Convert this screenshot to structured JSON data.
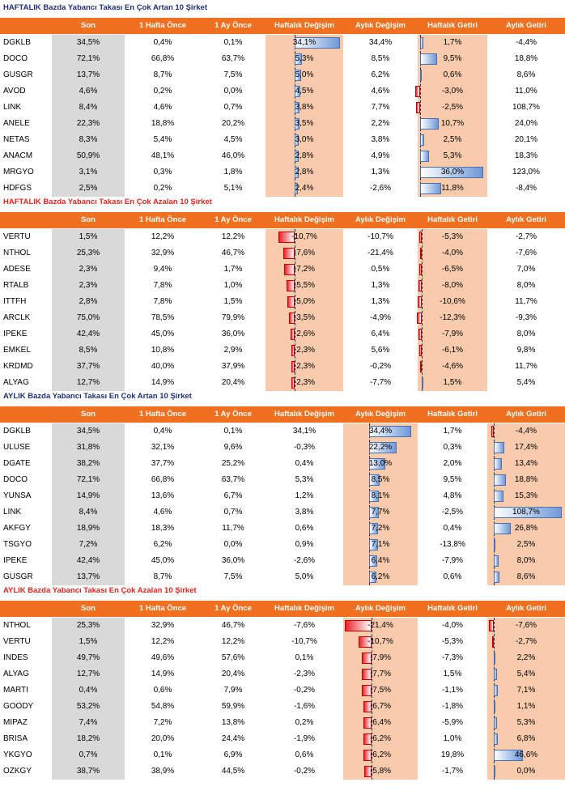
{
  "columns": [
    "Son",
    "1 Hafta Önce",
    "1 Ay Önce",
    "Haftalık Değişim",
    "Aylık Değişim",
    "Haftalık Getiri",
    "Aylık Getiri"
  ],
  "colors": {
    "header_bg": "#f07020",
    "header_text": "#ffffff",
    "title_blue": "#1f2f7a",
    "title_red": "#e8241c",
    "son_band": "#d9d9d9",
    "highlight_band": "#f8cbad",
    "bar_positive": "#6f99d6",
    "bar_negative": "#e8242c"
  },
  "sections": [
    {
      "title": "HAFTALIK Bazda Yabancı Takası En Çok Artan 10 Şirket",
      "title_color": "#1f2f7a",
      "highlight": [
        3,
        5
      ],
      "bar_columns": [
        3,
        5
      ],
      "rows": [
        {
          "code": "DGKLB",
          "v": [
            "34,5%",
            "0,4%",
            "0,1%",
            "34,1%",
            "34,4%",
            "1,7%",
            "-4,4%"
          ]
        },
        {
          "code": "DOCO",
          "v": [
            "72,1%",
            "66,8%",
            "63,7%",
            "5,3%",
            "8,5%",
            "9,5%",
            "18,8%"
          ]
        },
        {
          "code": "GUSGR",
          "v": [
            "13,7%",
            "8,7%",
            "7,5%",
            "5,0%",
            "6,2%",
            "0,6%",
            "8,6%"
          ]
        },
        {
          "code": "AVOD",
          "v": [
            "4,6%",
            "0,2%",
            "0,0%",
            "4,5%",
            "4,6%",
            "-3,0%",
            "11,0%"
          ]
        },
        {
          "code": "LINK",
          "v": [
            "8,4%",
            "4,6%",
            "0,7%",
            "3,8%",
            "7,7%",
            "-2,5%",
            "108,7%"
          ]
        },
        {
          "code": "ANELE",
          "v": [
            "22,3%",
            "18,8%",
            "20,2%",
            "3,5%",
            "2,2%",
            "10,7%",
            "24,0%"
          ]
        },
        {
          "code": "NETAS",
          "v": [
            "8,3%",
            "5,4%",
            "4,5%",
            "3,0%",
            "3,8%",
            "2,5%",
            "20,1%"
          ]
        },
        {
          "code": "ANACM",
          "v": [
            "50,9%",
            "48,1%",
            "46,0%",
            "2,8%",
            "4,9%",
            "5,3%",
            "18,3%"
          ]
        },
        {
          "code": "MRGYO",
          "v": [
            "3,1%",
            "0,3%",
            "1,8%",
            "2,8%",
            "1,3%",
            "36,0%",
            "123,0%"
          ]
        },
        {
          "code": "HDFGS",
          "v": [
            "2,5%",
            "0,2%",
            "5,1%",
            "2,4%",
            "-2,6%",
            "11,8%",
            "-8,4%"
          ]
        }
      ]
    },
    {
      "title": "HAFTALIK Bazda Yabancı Takası En Çok Azalan 10 Şirket",
      "title_color": "#e8241c",
      "highlight": [
        3,
        5
      ],
      "bar_columns": [
        3,
        5
      ],
      "rows": [
        {
          "code": "VERTU",
          "v": [
            "1,5%",
            "12,2%",
            "12,2%",
            "-10,7%",
            "-10,7%",
            "-5,3%",
            "-2,7%"
          ]
        },
        {
          "code": "NTHOL",
          "v": [
            "25,3%",
            "32,9%",
            "46,7%",
            "-7,6%",
            "-21,4%",
            "-4,0%",
            "-7,6%"
          ]
        },
        {
          "code": "ADESE",
          "v": [
            "2,3%",
            "9,4%",
            "1,7%",
            "-7,2%",
            "0,5%",
            "-6,5%",
            "7,0%"
          ]
        },
        {
          "code": "RTALB",
          "v": [
            "2,3%",
            "7,8%",
            "1,0%",
            "-5,5%",
            "1,3%",
            "-8,0%",
            "8,0%"
          ]
        },
        {
          "code": "ITTFH",
          "v": [
            "2,8%",
            "7,8%",
            "1,5%",
            "-5,0%",
            "1,3%",
            "-10,6%",
            "11,7%"
          ]
        },
        {
          "code": "ARCLK",
          "v": [
            "75,0%",
            "78,5%",
            "79,9%",
            "-3,5%",
            "-4,9%",
            "-12,3%",
            "-9,3%"
          ]
        },
        {
          "code": "IPEKE",
          "v": [
            "42,4%",
            "45,0%",
            "36,0%",
            "-2,6%",
            "6,4%",
            "-7,9%",
            "8,0%"
          ]
        },
        {
          "code": "EMKEL",
          "v": [
            "8,5%",
            "10,8%",
            "2,9%",
            "-2,3%",
            "5,6%",
            "-6,1%",
            "9,8%"
          ]
        },
        {
          "code": "KRDMD",
          "v": [
            "37,7%",
            "40,0%",
            "37,9%",
            "-2,3%",
            "-0,2%",
            "-4,6%",
            "11,7%"
          ]
        },
        {
          "code": "ALYAG",
          "v": [
            "12,7%",
            "14,9%",
            "20,4%",
            "-2,3%",
            "-7,7%",
            "1,5%",
            "5,4%"
          ]
        }
      ]
    },
    {
      "title": "AYLIK Bazda Yabancı Takası En Çok Artan 10 Şirket",
      "title_color": "#1f2f7a",
      "highlight": [
        4,
        6
      ],
      "bar_columns": [
        4,
        6
      ],
      "rows": [
        {
          "code": "DGKLB",
          "v": [
            "34,5%",
            "0,4%",
            "0,1%",
            "34,1%",
            "34,4%",
            "1,7%",
            "-4,4%"
          ]
        },
        {
          "code": "ULUSE",
          "v": [
            "31,8%",
            "32,1%",
            "9,6%",
            "-0,3%",
            "22,2%",
            "0,3%",
            "17,4%"
          ]
        },
        {
          "code": "DGATE",
          "v": [
            "38,2%",
            "37,7%",
            "25,2%",
            "0,4%",
            "13,0%",
            "2,0%",
            "13,4%"
          ]
        },
        {
          "code": "DOCO",
          "v": [
            "72,1%",
            "66,8%",
            "63,7%",
            "5,3%",
            "8,5%",
            "9,5%",
            "18,8%"
          ]
        },
        {
          "code": "YUNSA",
          "v": [
            "14,9%",
            "13,6%",
            "6,7%",
            "1,2%",
            "8,1%",
            "4,8%",
            "15,3%"
          ]
        },
        {
          "code": "LINK",
          "v": [
            "8,4%",
            "4,6%",
            "0,7%",
            "3,8%",
            "7,7%",
            "-2,5%",
            "108,7%"
          ]
        },
        {
          "code": "AKFGY",
          "v": [
            "18,9%",
            "18,3%",
            "11,7%",
            "0,6%",
            "7,2%",
            "0,4%",
            "26,8%"
          ]
        },
        {
          "code": "TSGYO",
          "v": [
            "7,2%",
            "6,2%",
            "0,0%",
            "0,9%",
            "7,1%",
            "-13,8%",
            "2,5%"
          ]
        },
        {
          "code": "IPEKE",
          "v": [
            "42,4%",
            "45,0%",
            "36,0%",
            "-2,6%",
            "6,4%",
            "-7,9%",
            "8,0%"
          ]
        },
        {
          "code": "GUSGR",
          "v": [
            "13,7%",
            "8,7%",
            "7,5%",
            "5,0%",
            "6,2%",
            "0,6%",
            "8,6%"
          ]
        }
      ]
    },
    {
      "title": "AYLIK Bazda Yabancı Takası En Çok Azalan 10 Şirket",
      "title_color": "#e8241c",
      "highlight": [
        4,
        6
      ],
      "bar_columns": [
        4,
        6
      ],
      "rows": [
        {
          "code": "NTHOL",
          "v": [
            "25,3%",
            "32,9%",
            "46,7%",
            "-7,6%",
            "-21,4%",
            "-4,0%",
            "-7,6%"
          ]
        },
        {
          "code": "VERTU",
          "v": [
            "1,5%",
            "12,2%",
            "12,2%",
            "-10,7%",
            "-10,7%",
            "-5,3%",
            "-2,7%"
          ]
        },
        {
          "code": "INDES",
          "v": [
            "49,7%",
            "49,6%",
            "57,6%",
            "0,1%",
            "-7,9%",
            "-7,3%",
            "2,2%"
          ]
        },
        {
          "code": "ALYAG",
          "v": [
            "12,7%",
            "14,9%",
            "20,4%",
            "-2,3%",
            "-7,7%",
            "1,5%",
            "5,4%"
          ]
        },
        {
          "code": "MARTI",
          "v": [
            "0,4%",
            "0,6%",
            "7,9%",
            "-0,2%",
            "-7,5%",
            "-1,1%",
            "7,1%"
          ]
        },
        {
          "code": "GOODY",
          "v": [
            "53,2%",
            "54,8%",
            "59,9%",
            "-1,6%",
            "-6,7%",
            "-1,8%",
            "1,1%"
          ]
        },
        {
          "code": "MIPAZ",
          "v": [
            "7,4%",
            "7,2%",
            "13,8%",
            "0,2%",
            "-6,4%",
            "-5,9%",
            "5,3%"
          ]
        },
        {
          "code": "BRISA",
          "v": [
            "18,2%",
            "20,0%",
            "24,4%",
            "-1,9%",
            "-6,2%",
            "1,0%",
            "6,8%"
          ]
        },
        {
          "code": "YKGYO",
          "v": [
            "0,7%",
            "0,1%",
            "6,9%",
            "0,6%",
            "-6,2%",
            "19,8%",
            "46,6%"
          ]
        },
        {
          "code": "OZKGY",
          "v": [
            "38,7%",
            "38,9%",
            "44,5%",
            "-0,2%",
            "-5,8%",
            "-1,7%",
            "0,0%"
          ]
        }
      ]
    }
  ]
}
